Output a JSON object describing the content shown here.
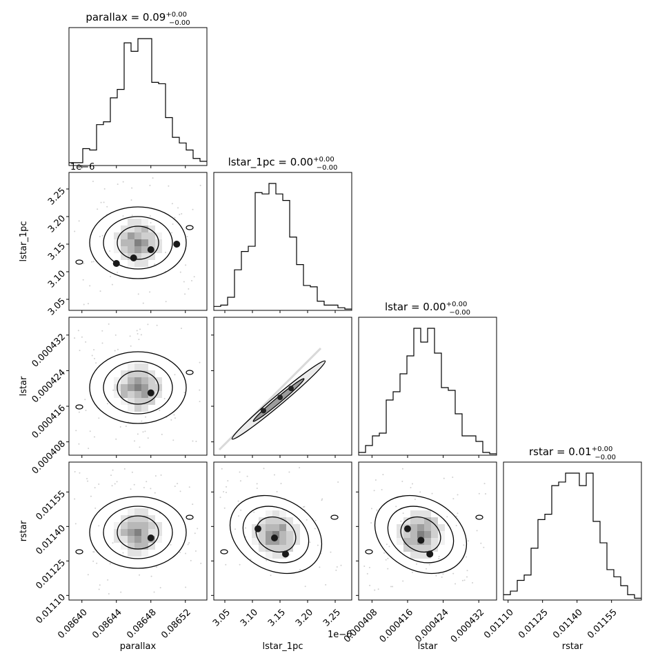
{
  "chart_data": {
    "type": "corner",
    "parameters": [
      {
        "key": "parallax",
        "label": "parallax",
        "title_main": "parallax = 0.09",
        "title_sup": "+0.00",
        "title_sub": "−0.00",
        "range": [
          0.086385,
          0.086545
        ],
        "ticks": [
          0.0864,
          0.08644,
          0.08648,
          0.08652
        ],
        "tick_labels": [
          "0.08640",
          "0.08644",
          "0.08648",
          "0.08652"
        ],
        "offset_label": ""
      },
      {
        "key": "lstar_1pc",
        "label": "lstar_1pc",
        "title_main": "lstar_1pc = 0.00",
        "title_sup": "+0.00",
        "title_sub": "−0.00",
        "range": [
          3.03,
          3.28
        ],
        "ticks": [
          3.05,
          3.1,
          3.15,
          3.2,
          3.25
        ],
        "tick_labels": [
          "3.05",
          "3.10",
          "3.15",
          "3.20",
          "3.25"
        ],
        "offset_label": "1e−6"
      },
      {
        "key": "lstar",
        "label": "lstar",
        "title_main": "lstar = 0.00",
        "title_sup": "+0.00",
        "title_sub": "−0.00",
        "range": [
          0.000405,
          0.000436
        ],
        "ticks": [
          0.000408,
          0.000416,
          0.000424,
          0.000432
        ],
        "tick_labels": [
          "0.000408",
          "0.000416",
          "0.000424",
          "0.000432"
        ],
        "offset_label": ""
      },
      {
        "key": "rstar",
        "label": "rstar",
        "title_main": "rstar = 0.01",
        "title_sup": "+0.00",
        "title_sub": "−0.00",
        "range": [
          0.01108,
          0.01168
        ],
        "ticks": [
          0.0111,
          0.01125,
          0.0114,
          0.01155
        ],
        "tick_labels": [
          "0.01110",
          "0.01125",
          "0.01140",
          "0.01155"
        ],
        "offset_label": ""
      }
    ],
    "histograms": [
      {
        "param": "parallax",
        "counts": [
          2,
          2,
          12,
          11,
          29,
          31,
          48,
          54,
          87,
          81,
          90,
          90,
          59,
          58,
          34,
          20,
          16,
          11,
          5,
          3
        ]
      },
      {
        "param": "lstar_1pc",
        "counts": [
          3,
          4,
          10,
          31,
          45,
          49,
          90,
          89,
          97,
          89,
          84,
          56,
          35,
          19,
          18,
          7,
          4,
          4,
          2,
          1
        ]
      },
      {
        "param": "lstar",
        "counts": [
          2,
          7,
          14,
          16,
          40,
          46,
          59,
          72,
          92,
          82,
          92,
          74,
          49,
          47,
          30,
          14,
          14,
          10,
          2,
          1
        ]
      },
      {
        "param": "rstar",
        "counts": [
          3,
          5,
          11,
          14,
          29,
          45,
          48,
          64,
          66,
          71,
          71,
          64,
          71,
          44,
          32,
          17,
          13,
          8,
          3,
          1
        ]
      }
    ],
    "pairs": [
      {
        "x": "parallax",
        "y": "lstar_1pc",
        "correlation": 0.0,
        "peaks": [
          [
            0.08648,
            3.14
          ],
          [
            0.08646,
            3.125
          ],
          [
            0.08651,
            3.15
          ],
          [
            0.08644,
            3.115
          ]
        ]
      },
      {
        "x": "parallax",
        "y": "lstar",
        "correlation": 0.0,
        "peaks": [
          [
            0.08648,
            0.000419
          ]
        ]
      },
      {
        "x": "parallax",
        "y": "rstar",
        "correlation": 0.0,
        "peaks": [
          [
            0.08648,
            0.01135
          ]
        ]
      },
      {
        "x": "lstar_1pc",
        "y": "lstar",
        "correlation": 1.0,
        "peaks": [
          [
            3.12,
            0.000415
          ],
          [
            3.15,
            0.000418
          ],
          [
            3.17,
            0.00042
          ]
        ]
      },
      {
        "x": "lstar_1pc",
        "y": "rstar",
        "correlation": -0.6,
        "peaks": [
          [
            3.11,
            0.01139
          ],
          [
            3.14,
            0.01135
          ],
          [
            3.16,
            0.01128
          ]
        ]
      },
      {
        "x": "lstar",
        "y": "rstar",
        "correlation": -0.6,
        "peaks": [
          [
            0.000416,
            0.01139
          ],
          [
            0.000419,
            0.01134
          ],
          [
            0.000421,
            0.01128
          ]
        ]
      }
    ]
  }
}
